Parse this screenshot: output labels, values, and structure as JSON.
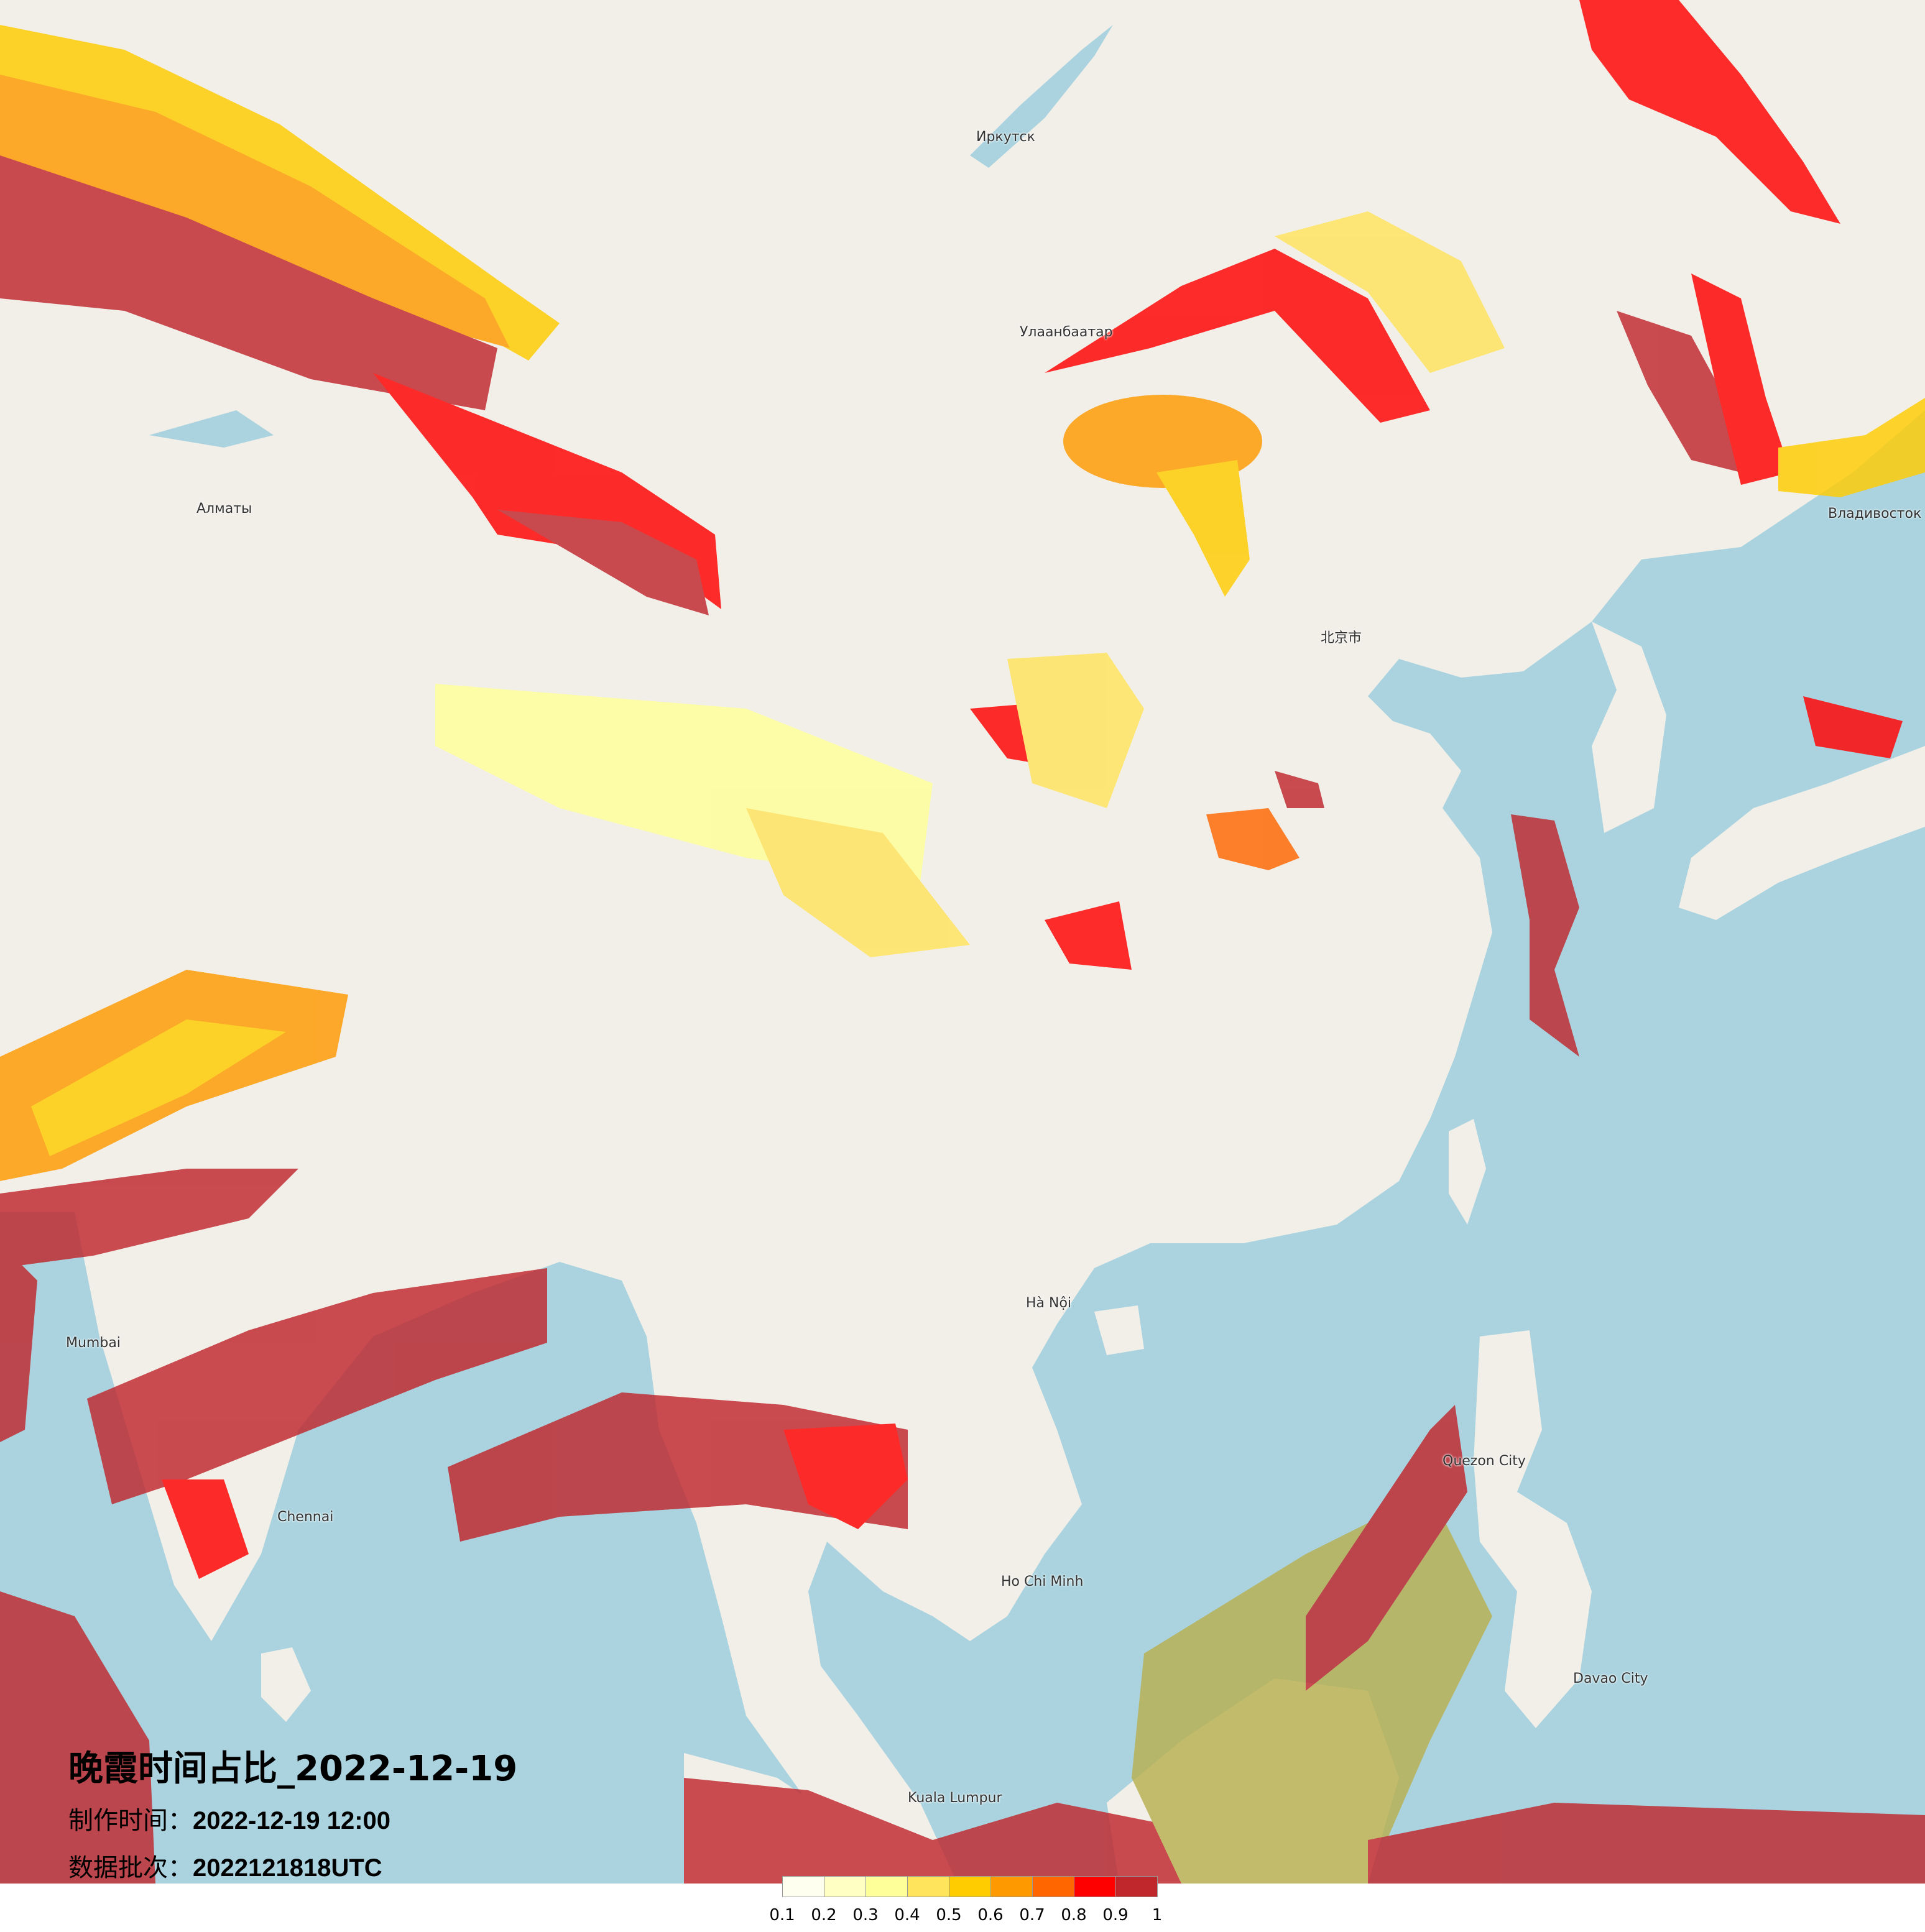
{
  "title": "晚霞时间占比_2022-12-19",
  "production_time": {
    "label": "制作时间：",
    "value": "2022-12-19 12:00"
  },
  "data_batch": {
    "label": "数据批次：",
    "value": "2022121818UTC"
  },
  "legend": {
    "ticks": [
      "0.1",
      "0.2",
      "0.3",
      "0.4",
      "0.5",
      "0.6",
      "0.7",
      "0.8",
      "0.9",
      "1"
    ],
    "colors": [
      "#fffff0",
      "#ffffc4",
      "#ffff99",
      "#ffe45c",
      "#ffcc00",
      "#ff9900",
      "#ff6600",
      "#ff0000",
      "#c0272d"
    ]
  },
  "map": {
    "land_color": "#f2efe9",
    "water_color": "#aad3df",
    "cities": [
      "Алматы",
      "Иркутск",
      "Улаанбаатар",
      "北京市",
      "Hà Nội",
      "Ho Chi Minh",
      "Chennai",
      "Mumbai",
      "Kuala Lumpur",
      "Quezon City",
      "Davao City",
      "Владивосток"
    ]
  }
}
